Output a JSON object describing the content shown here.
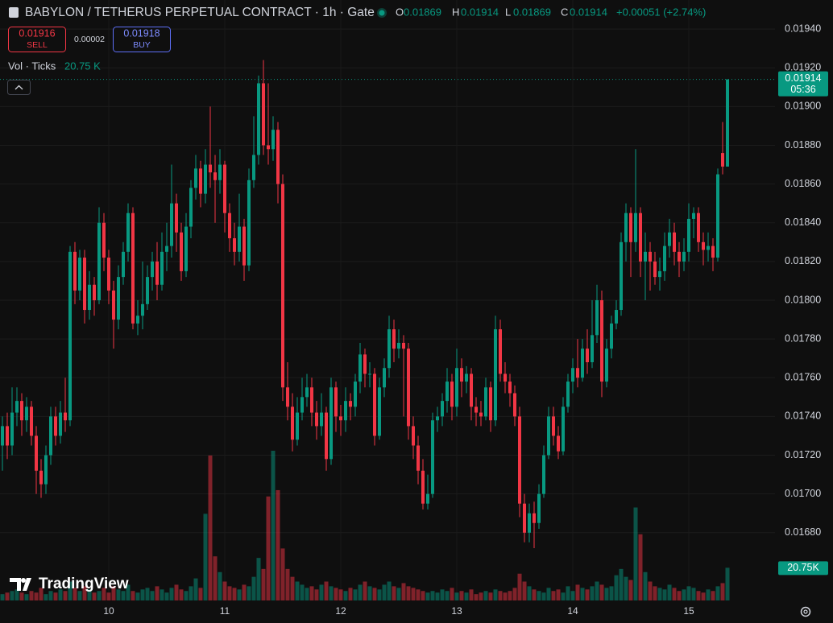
{
  "chart_data": {
    "type": "candlestick",
    "title": "BABYLON / TETHERUS PERPETUAL CONTRACT · 1h · Gate",
    "legend_labels": [
      "O",
      "H",
      "L",
      "C"
    ],
    "change_label": "+0.00051 (+2.74%)",
    "countdown": "05:36",
    "up_color": "#089981",
    "down_color": "#f23645",
    "grid": true,
    "ylim": [
      0.01645,
      0.01955
    ],
    "yticks": [
      {
        "value": 0.0168,
        "label": "0.01680"
      },
      {
        "value": 0.017,
        "label": "0.01700"
      },
      {
        "value": 0.0172,
        "label": "0.01720"
      },
      {
        "value": 0.0174,
        "label": "0.01740"
      },
      {
        "value": 0.0176,
        "label": "0.01760"
      },
      {
        "value": 0.0178,
        "label": "0.01780"
      },
      {
        "value": 0.018,
        "label": "0.01800"
      },
      {
        "value": 0.0182,
        "label": "0.01820"
      },
      {
        "value": 0.0184,
        "label": "0.01840"
      },
      {
        "value": 0.0186,
        "label": "0.01860"
      },
      {
        "value": 0.0188,
        "label": "0.01880"
      },
      {
        "value": 0.019,
        "label": "0.01900"
      },
      {
        "value": 0.0192,
        "label": "0.01920"
      },
      {
        "value": 0.0194,
        "label": "0.01940"
      }
    ],
    "categories": [
      null,
      null,
      null,
      null,
      null,
      null,
      null,
      null,
      null,
      null,
      null,
      null,
      null,
      null,
      null,
      null,
      null,
      null,
      null,
      null,
      null,
      null,
      "10",
      null,
      null,
      null,
      null,
      null,
      null,
      null,
      null,
      null,
      null,
      null,
      null,
      null,
      null,
      null,
      null,
      null,
      null,
      null,
      null,
      null,
      null,
      null,
      "11",
      null,
      null,
      null,
      null,
      null,
      null,
      null,
      null,
      null,
      null,
      null,
      null,
      null,
      null,
      null,
      null,
      null,
      null,
      null,
      null,
      null,
      null,
      null,
      "12",
      null,
      null,
      null,
      null,
      null,
      null,
      null,
      null,
      null,
      null,
      null,
      null,
      null,
      null,
      null,
      null,
      null,
      null,
      null,
      null,
      null,
      null,
      null,
      "13",
      null,
      null,
      null,
      null,
      null,
      null,
      null,
      null,
      null,
      null,
      null,
      null,
      null,
      null,
      null,
      null,
      null,
      null,
      null,
      null,
      null,
      null,
      null,
      "14",
      null,
      null,
      null,
      null,
      null,
      null,
      null,
      null,
      null,
      null,
      null,
      null,
      null,
      null,
      null,
      null,
      null,
      null,
      null,
      null,
      null,
      null,
      null,
      "15",
      null,
      null,
      null,
      null,
      null,
      null,
      null,
      null
    ],
    "open": [
      0.01725,
      0.01735,
      0.01725,
      0.01742,
      0.01748,
      0.01738,
      0.01745,
      0.0173,
      0.01712,
      0.01705,
      0.0172,
      0.0174,
      0.0173,
      0.01742,
      0.01738,
      0.01825,
      0.01805,
      0.01822,
      0.01795,
      0.01808,
      0.018,
      0.0184,
      0.01822,
      0.01805,
      0.0179,
      0.01812,
      0.01825,
      0.01845,
      0.01788,
      0.01792,
      0.01798,
      0.01812,
      0.0182,
      0.01808,
      0.01825,
      0.01828,
      0.0185,
      0.01835,
      0.01815,
      0.01838,
      0.01858,
      0.01868,
      0.01855,
      0.0187,
      0.01866,
      0.01862,
      0.0187,
      0.01845,
      0.01832,
      0.01825,
      0.01838,
      0.01818,
      0.01862,
      0.01875,
      0.01912,
      0.0188,
      0.01878,
      0.01888,
      0.0186,
      0.01755,
      0.01745,
      0.01728,
      0.01742,
      0.0175,
      0.01755,
      0.01742,
      0.01735,
      0.01742,
      0.01718,
      0.01755,
      0.0174,
      0.01738,
      0.01748,
      0.01745,
      0.01758,
      0.01772,
      0.01762,
      0.01762,
      0.0173,
      0.01755,
      0.01765,
      0.01785,
      0.01775,
      0.01778,
      0.01775,
      0.01735,
      0.01725,
      0.01712,
      0.01695,
      0.017,
      0.01738,
      0.0174,
      0.01748,
      0.01758,
      0.01745,
      0.01765,
      0.01758,
      0.01762,
      0.01745,
      0.01742,
      0.0174,
      0.01755,
      0.01738,
      0.01785,
      0.01762,
      0.01758,
      0.01752,
      0.0174,
      0.01695,
      0.0168,
      0.0169,
      0.01685,
      0.017,
      0.0172,
      0.0174,
      0.0173,
      0.01722,
      0.01745,
      0.01758,
      0.01765,
      0.0176,
      0.01775,
      0.01768,
      0.01782,
      0.018,
      0.01758,
      0.01775,
      0.01788,
      0.01795,
      0.0183,
      0.01845,
      0.0183,
      0.01845,
      0.0182,
      0.01825,
      0.0182,
      0.01812,
      0.01815,
      0.01828,
      0.01835,
      0.01825,
      0.0182,
      0.01825,
      0.01842,
      0.01845,
      0.0183,
      0.01826,
      0.01828,
      0.01822,
      0.01876,
      0.01869
    ],
    "high": [
      0.0174,
      0.01742,
      0.01755,
      0.01755,
      0.01752,
      0.0175,
      0.01748,
      0.01735,
      0.01718,
      0.01725,
      0.01745,
      0.01745,
      0.01748,
      0.0176,
      0.01828,
      0.0183,
      0.01826,
      0.01826,
      0.01815,
      0.01812,
      0.01848,
      0.01845,
      0.01826,
      0.0181,
      0.01818,
      0.0183,
      0.0185,
      0.01848,
      0.018,
      0.0182,
      0.01818,
      0.01825,
      0.0183,
      0.01835,
      0.0184,
      0.0187,
      0.01855,
      0.0184,
      0.01845,
      0.01862,
      0.01875,
      0.01872,
      0.01878,
      0.019,
      0.01875,
      0.01878,
      0.01872,
      0.0185,
      0.0184,
      0.01855,
      0.01842,
      0.01868,
      0.01895,
      0.01916,
      0.01924,
      0.01912,
      0.01895,
      0.01892,
      0.01865,
      0.01768,
      0.01752,
      0.0175,
      0.0176,
      0.01762,
      0.0176,
      0.01748,
      0.01752,
      0.01745,
      0.0176,
      0.01758,
      0.01746,
      0.01755,
      0.01752,
      0.01762,
      0.01778,
      0.01775,
      0.01768,
      0.01765,
      0.0176,
      0.0177,
      0.01792,
      0.0179,
      0.01785,
      0.01782,
      0.01778,
      0.0174,
      0.0173,
      0.01718,
      0.0171,
      0.01742,
      0.01745,
      0.01752,
      0.01765,
      0.01762,
      0.01775,
      0.0177,
      0.01766,
      0.01765,
      0.0175,
      0.01748,
      0.0176,
      0.01758,
      0.01792,
      0.0179,
      0.01768,
      0.01762,
      0.01756,
      0.01745,
      0.017,
      0.01695,
      0.01696,
      0.01705,
      0.01725,
      0.01745,
      0.01745,
      0.01735,
      0.0175,
      0.01762,
      0.0177,
      0.0178,
      0.0178,
      0.01785,
      0.018,
      0.01808,
      0.01805,
      0.0178,
      0.01792,
      0.018,
      0.01835,
      0.0185,
      0.01848,
      0.01878,
      0.01848,
      0.01835,
      0.0183,
      0.01825,
      0.01822,
      0.01835,
      0.01842,
      0.0184,
      0.0183,
      0.01832,
      0.0185,
      0.01848,
      0.01848,
      0.01835,
      0.01835,
      0.01832,
      0.01868,
      0.01892,
      0.01914
    ],
    "low": [
      0.01712,
      0.01718,
      0.0172,
      0.01735,
      0.0173,
      0.01732,
      0.01725,
      0.017,
      0.01698,
      0.017,
      0.01715,
      0.01725,
      0.01726,
      0.01732,
      0.01735,
      0.01798,
      0.018,
      0.01788,
      0.0179,
      0.01792,
      0.01798,
      0.01815,
      0.01798,
      0.01775,
      0.01785,
      0.01808,
      0.0182,
      0.01785,
      0.01782,
      0.01785,
      0.01795,
      0.01805,
      0.018,
      0.01805,
      0.01815,
      0.01822,
      0.01825,
      0.0181,
      0.01812,
      0.01832,
      0.01852,
      0.01848,
      0.0185,
      0.01858,
      0.0184,
      0.01855,
      0.01835,
      0.01825,
      0.01818,
      0.0182,
      0.0181,
      0.01815,
      0.01858,
      0.0187,
      0.01875,
      0.0187,
      0.01872,
      0.0185,
      0.01748,
      0.01738,
      0.01722,
      0.01725,
      0.01738,
      0.01745,
      0.01735,
      0.01728,
      0.0173,
      0.01712,
      0.01715,
      0.01732,
      0.0173,
      0.01732,
      0.01738,
      0.0174,
      0.01752,
      0.01755,
      0.01755,
      0.01725,
      0.01728,
      0.0175,
      0.0176,
      0.01768,
      0.0177,
      0.0174,
      0.01728,
      0.01718,
      0.01705,
      0.01692,
      0.01692,
      0.01698,
      0.01732,
      0.01735,
      0.01742,
      0.01738,
      0.0174,
      0.0175,
      0.01752,
      0.01738,
      0.01735,
      0.01735,
      0.01738,
      0.01732,
      0.01735,
      0.01758,
      0.01752,
      0.01745,
      0.01735,
      0.01688,
      0.01675,
      0.01675,
      0.01672,
      0.01682,
      0.01698,
      0.01718,
      0.01725,
      0.01718,
      0.0172,
      0.01742,
      0.01752,
      0.01755,
      0.01758,
      0.01762,
      0.01765,
      0.01778,
      0.0175,
      0.01755,
      0.0177,
      0.01785,
      0.01792,
      0.0182,
      0.01812,
      0.01825,
      0.01812,
      0.018,
      0.01805,
      0.01808,
      0.01805,
      0.0181,
      0.01822,
      0.01818,
      0.01812,
      0.01815,
      0.0182,
      0.01832,
      0.01825,
      0.01818,
      0.0182,
      0.01815,
      0.0182,
      0.01865,
      0.01869
    ],
    "close": [
      0.01735,
      0.01725,
      0.01742,
      0.01748,
      0.01738,
      0.01745,
      0.0173,
      0.01712,
      0.01705,
      0.0172,
      0.0174,
      0.0173,
      0.01742,
      0.01738,
      0.01825,
      0.01805,
      0.01822,
      0.01795,
      0.01808,
      0.018,
      0.0184,
      0.01822,
      0.01805,
      0.0179,
      0.01812,
      0.01825,
      0.01845,
      0.01788,
      0.01792,
      0.01798,
      0.01812,
      0.0182,
      0.01808,
      0.01825,
      0.01828,
      0.0185,
      0.01835,
      0.01815,
      0.01838,
      0.01858,
      0.01868,
      0.01855,
      0.0187,
      0.01866,
      0.01862,
      0.0187,
      0.01845,
      0.01832,
      0.01825,
      0.01838,
      0.01818,
      0.01862,
      0.01875,
      0.01912,
      0.0188,
      0.01878,
      0.01888,
      0.0186,
      0.01755,
      0.01745,
      0.01728,
      0.01742,
      0.0175,
      0.01755,
      0.01742,
      0.01735,
      0.01742,
      0.01718,
      0.01755,
      0.0174,
      0.01738,
      0.01748,
      0.01745,
      0.01758,
      0.01772,
      0.01762,
      0.01762,
      0.0173,
      0.01755,
      0.01765,
      0.01785,
      0.01775,
      0.01778,
      0.01775,
      0.01735,
      0.01725,
      0.01712,
      0.01695,
      0.017,
      0.01738,
      0.0174,
      0.01748,
      0.01758,
      0.01745,
      0.01765,
      0.01758,
      0.01762,
      0.01745,
      0.01742,
      0.0174,
      0.01755,
      0.01738,
      0.01785,
      0.01762,
      0.01758,
      0.01752,
      0.0174,
      0.01695,
      0.0168,
      0.0169,
      0.01685,
      0.017,
      0.0172,
      0.0174,
      0.0173,
      0.01722,
      0.01745,
      0.01758,
      0.01765,
      0.0176,
      0.01775,
      0.01768,
      0.01782,
      0.018,
      0.01758,
      0.01775,
      0.01788,
      0.01795,
      0.0183,
      0.01845,
      0.0183,
      0.01845,
      0.0182,
      0.01825,
      0.0182,
      0.01812,
      0.01815,
      0.01828,
      0.01835,
      0.01825,
      0.0182,
      0.01825,
      0.01842,
      0.01845,
      0.0183,
      0.01826,
      0.01828,
      0.01822,
      0.01865,
      0.01869,
      0.01914
    ],
    "volume": {
      "name": "Vol · Ticks",
      "last_label": "20.75 K",
      "axis_label": "20.75K",
      "values": [
        4,
        5,
        6,
        7,
        5,
        4,
        6,
        5,
        8,
        4,
        6,
        5,
        7,
        6,
        12,
        8,
        6,
        9,
        7,
        5,
        6,
        8,
        5,
        9,
        7,
        6,
        10,
        6,
        5,
        7,
        8,
        6,
        9,
        7,
        5,
        8,
        10,
        7,
        6,
        9,
        14,
        8,
        55,
        92,
        28,
        18,
        12,
        9,
        8,
        7,
        10,
        9,
        15,
        27,
        20,
        66,
        95,
        70,
        33,
        20,
        15,
        12,
        10,
        8,
        9,
        7,
        10,
        12,
        9,
        8,
        7,
        6,
        8,
        7,
        10,
        12,
        9,
        8,
        7,
        10,
        12,
        9,
        8,
        11,
        9,
        8,
        7,
        6,
        5,
        6,
        5,
        7,
        6,
        8,
        5,
        6,
        5,
        7,
        4,
        5,
        6,
        5,
        7,
        6,
        5,
        6,
        8,
        17,
        12,
        9,
        7,
        6,
        5,
        8,
        6,
        7,
        5,
        9,
        6,
        10,
        8,
        7,
        9,
        12,
        10,
        8,
        9,
        16,
        20,
        15,
        13,
        59,
        42,
        18,
        12,
        9,
        8,
        7,
        10,
        8,
        6,
        7,
        9,
        8,
        6,
        5,
        7,
        6,
        9,
        11,
        20.75
      ]
    }
  },
  "ui": {
    "sell_price": 0.01916,
    "sell": "SELL",
    "spread": 2e-05,
    "buy_price": 0.01918,
    "buy": "BUY",
    "logo": "TradingView"
  }
}
